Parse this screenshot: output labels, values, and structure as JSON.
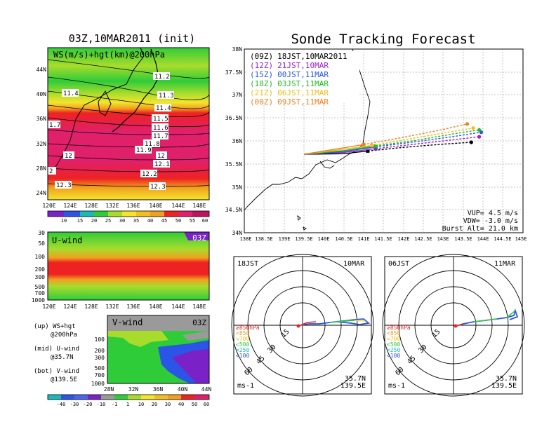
{
  "page": {
    "left_title": "03Z,10MAR2011 (init)",
    "right_title": "Sonde Tracking Forecast"
  },
  "colors": {
    "purple": "#7a22c8",
    "blue": "#2a55e6",
    "teal": "#1ab8b8",
    "green": "#2fcc3a",
    "lime": "#a8dc2c",
    "yellow": "#f4e52c",
    "orange": "#f0a020",
    "red": "#ee2222",
    "magenta": "#e0206a",
    "gray": "#9a9a9a",
    "land": "#000000"
  },
  "top_map": {
    "label": "WS(m/s)+hgt(km)@200hPa",
    "lat_labels": [
      "44N",
      "40N",
      "36N",
      "32N",
      "28N",
      "24N"
    ],
    "lon_labels": [
      "120E",
      "124E",
      "128E",
      "132E",
      "136E",
      "140E",
      "144E",
      "148E"
    ],
    "contour_labels": [
      "11.2",
      "11.3",
      "11.4",
      "11.4",
      "11.5",
      "11.6",
      "11.7",
      "11.8",
      "11.9",
      "12",
      "12",
      "12.1",
      "12.2",
      "12.3",
      "12.3",
      "1.7",
      "2"
    ],
    "colorbar_labels": [
      "10",
      "15",
      "20",
      "25",
      "30",
      "35",
      "40",
      "45",
      "50",
      "55",
      "60"
    ]
  },
  "u_panel": {
    "label": "U-wind",
    "time_tag": "03Z",
    "y_ticks": [
      "30",
      "50",
      "100",
      "200",
      "300",
      "500",
      "700",
      "1000"
    ],
    "x_ticks": [
      "120E",
      "124E",
      "128E",
      "132E",
      "136E",
      "140E",
      "144E",
      "148E"
    ]
  },
  "v_panel": {
    "label": "V-wind",
    "time_tag": "03Z",
    "y_ticks": [
      "100",
      "200",
      "300",
      "500",
      "700",
      "1000"
    ],
    "x_ticks": [
      "28N",
      "32N",
      "36N",
      "40N",
      "44N"
    ],
    "colorbar_labels": [
      "-40",
      "-30",
      "-20",
      "-10",
      "-1",
      "1",
      "10",
      "20",
      "30",
      "40",
      "50",
      "60"
    ]
  },
  "legend_notes": [
    {
      "line1": "(up) WS+hgt",
      "line2": "@200hPa"
    },
    {
      "line1": "(mid) U-wind",
      "line2": "@35.7N"
    },
    {
      "line1": "(bot) V-wind",
      "line2": "@139.5E"
    }
  ],
  "track_map": {
    "legend": [
      {
        "z": "(09Z)",
        "time": "18JST,10MAR2011",
        "color": "#000000"
      },
      {
        "z": "(12Z)",
        "time": "21JST,10MAR",
        "color": "#9a22cc"
      },
      {
        "z": "(15Z)",
        "time": "00JST,11MAR",
        "color": "#2a55e6"
      },
      {
        "z": "(18Z)",
        "time": "03JST,11MAR",
        "color": "#22bb22"
      },
      {
        "z": "(21Z)",
        "time": "06JST,11MAR",
        "color": "#e8c020"
      },
      {
        "z": "(00Z)",
        "time": "09JST,11MAR",
        "color": "#f08020"
      }
    ],
    "lat_labels": [
      "38N",
      "37.5N",
      "37N",
      "36.5N",
      "36N",
      "35.5N",
      "35N",
      "34.5N",
      "34N"
    ],
    "lon_labels": [
      "138E",
      "138.5E",
      "139E",
      "139.5E",
      "140E",
      "140.5E",
      "141E",
      "141.5E",
      "142E",
      "142.5E",
      "143E",
      "143.5E",
      "144E",
      "144.5E",
      "145E"
    ],
    "info": [
      "VUP= 4.5 m/s",
      "VDW= -3.0 m/s",
      "Burst Alt= 21.0 km"
    ]
  },
  "chart_data": [
    {
      "type": "line",
      "title": "Sonde Tracking Forecast",
      "xlabel": "",
      "ylabel": "",
      "xlim": [
        138,
        145
      ],
      "ylim": [
        34,
        38
      ],
      "launch": {
        "lon": 139.5,
        "lat": 35.7
      },
      "series": [
        {
          "name": "(09Z) 18JST,10MAR2011",
          "color": "#000000",
          "x": [
            139.5,
            140.5,
            141.1,
            142.0,
            143.0,
            143.7
          ],
          "y": [
            35.71,
            35.72,
            35.78,
            35.86,
            35.93,
            35.97
          ]
        },
        {
          "name": "(12Z) 21JST,10MAR",
          "color": "#9a22cc",
          "x": [
            139.5,
            140.5,
            141.3,
            142.2,
            143.2,
            143.9
          ],
          "y": [
            35.71,
            35.75,
            35.83,
            35.92,
            36.02,
            36.09
          ]
        },
        {
          "name": "(15Z) 00JST,11MAR",
          "color": "#2a55e6",
          "x": [
            139.5,
            140.5,
            141.3,
            142.3,
            143.3,
            143.95
          ],
          "y": [
            35.71,
            35.77,
            35.87,
            35.98,
            36.1,
            36.19
          ]
        },
        {
          "name": "(18Z) 03JST,11MAR",
          "color": "#22bb22",
          "x": [
            139.5,
            140.5,
            141.3,
            142.3,
            143.3,
            143.9
          ],
          "y": [
            35.71,
            35.79,
            35.89,
            36.01,
            36.16,
            36.24
          ]
        },
        {
          "name": "(21Z) 06JST,11MAR",
          "color": "#e8c020",
          "x": [
            139.5,
            140.5,
            141.2,
            142.2,
            143.2,
            143.75
          ],
          "y": [
            35.71,
            35.82,
            35.9,
            36.05,
            36.2,
            36.28
          ]
        },
        {
          "name": "(00Z) 09JST,11MAR",
          "color": "#f08020",
          "x": [
            139.5,
            140.5,
            141.0,
            142.0,
            143.0,
            143.6
          ],
          "y": [
            35.71,
            35.85,
            35.92,
            36.08,
            36.25,
            36.37
          ]
        }
      ]
    },
    {
      "type": "line",
      "title": "18JST 10MAR",
      "pressure_legend": [
        "≥850hPa",
        "<850",
        "<700",
        "<500",
        "<250",
        "<100"
      ],
      "ring_labels": [
        "15",
        "30",
        "45",
        "60"
      ],
      "units": "ms-1",
      "location": [
        "35.7N",
        "139.5E"
      ]
    },
    {
      "type": "line",
      "title": "06JST 11MAR",
      "pressure_legend": [
        "≥850hPa",
        "<850",
        "<700",
        "<500",
        "<250",
        "<100"
      ],
      "ring_labels": [
        "15",
        "30",
        "45",
        "60"
      ],
      "units": "ms-1",
      "location": [
        "35.7N",
        "139.5E"
      ]
    }
  ],
  "hodo_left": {
    "time": "18JST",
    "date": "10MAR"
  },
  "hodo_right": {
    "time": "06JST",
    "date": "11MAR"
  }
}
